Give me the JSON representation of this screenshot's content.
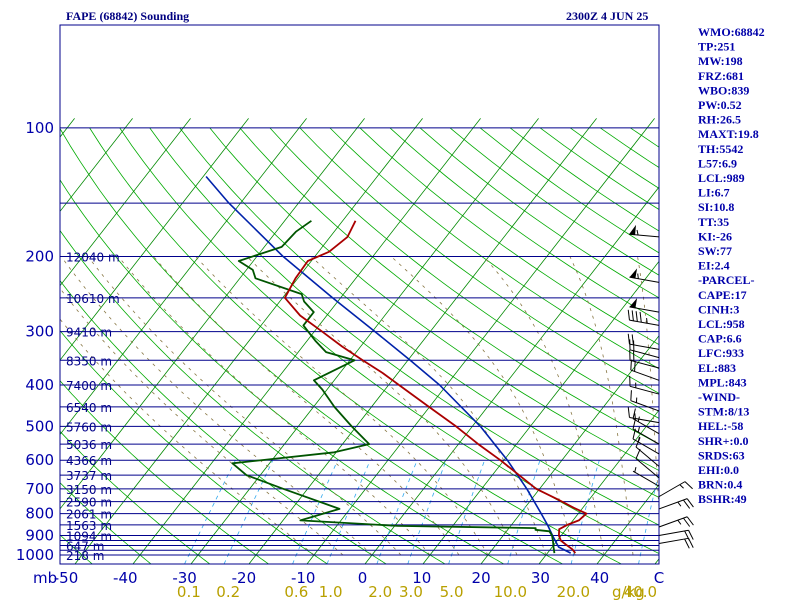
{
  "title_left": "FAPE (68842) Sounding",
  "title_right": "2300Z  4 JUN 25",
  "colors": {
    "isobar": "#00008b",
    "temperature": "#aa0000",
    "dewpoint": "#005500",
    "parcel": "#0022aa",
    "dry_adiabat": "#00aa00",
    "isotherm": "#008800",
    "mixing_ratio": "#33aaee",
    "moist_adiabat": "#887744",
    "wind": "#000000"
  },
  "chart_data": {
    "type": "skew-t log-p",
    "title": "FAPE (68842) Sounding",
    "valid_time": "2300Z  4 JUN 25",
    "pressure_unit": "mb",
    "mixing_ratio_unit": "g/kg",
    "pressure_labels": [
      "100",
      "200",
      "300",
      "400",
      "500",
      "600",
      "700",
      "800",
      "900",
      "1000"
    ],
    "temperature_tick_labels": [
      "-50",
      "-40",
      "-30",
      "-20",
      "-10",
      "0",
      "10",
      "20",
      "30",
      "40",
      "C"
    ],
    "mixing_ratio_labels": [
      "0.1",
      "0.2",
      "0.6",
      "1.0",
      "2.0",
      "3.0",
      "5.0",
      "10.0",
      "20.0",
      "40.0"
    ],
    "height_labels": [
      {
        "p": 200,
        "label": "12040 m"
      },
      {
        "p": 250,
        "label": "10610 m"
      },
      {
        "p": 300,
        "label": "9410 m"
      },
      {
        "p": 350,
        "label": "8350 m"
      },
      {
        "p": 400,
        "label": "7400 m"
      },
      {
        "p": 450,
        "label": "6540 m"
      },
      {
        "p": 500,
        "label": "5760 m"
      },
      {
        "p": 550,
        "label": "5036 m"
      },
      {
        "p": 600,
        "label": "4366 m"
      },
      {
        "p": 650,
        "label": "3737 m"
      },
      {
        "p": 700,
        "label": "3150 m"
      },
      {
        "p": 750,
        "label": "2590 m"
      },
      {
        "p": 800,
        "label": "2061 m"
      },
      {
        "p": 850,
        "label": "1563 m"
      },
      {
        "p": 900,
        "label": "1094 m"
      },
      {
        "p": 950,
        "label": "647 m"
      },
      {
        "p": 1000,
        "label": "218 m"
      }
    ],
    "temperature_profile": [
      {
        "p": 990,
        "t": 24.8
      },
      {
        "p": 970,
        "t": 23.8
      },
      {
        "p": 945,
        "t": 22.0
      },
      {
        "p": 925,
        "t": 20.6
      },
      {
        "p": 900,
        "t": 19.6
      },
      {
        "p": 870,
        "t": 18.8
      },
      {
        "p": 850,
        "t": 19.6
      },
      {
        "p": 830,
        "t": 21.0
      },
      {
        "p": 800,
        "t": 21.4
      },
      {
        "p": 775,
        "t": 18.4
      },
      {
        "p": 740,
        "t": 14.4
      },
      {
        "p": 700,
        "t": 9.4
      },
      {
        "p": 660,
        "t": 5.6
      },
      {
        "p": 600,
        "t": -0.6
      },
      {
        "p": 550,
        "t": -6.6
      },
      {
        "p": 500,
        "t": -12.8
      },
      {
        "p": 450,
        "t": -20.1
      },
      {
        "p": 400,
        "t": -28.2
      },
      {
        "p": 375,
        "t": -32.6
      },
      {
        "p": 350,
        "t": -37.8
      },
      {
        "p": 325,
        "t": -43.2
      },
      {
        "p": 300,
        "t": -48.6
      },
      {
        "p": 275,
        "t": -54.6
      },
      {
        "p": 250,
        "t": -59.6
      },
      {
        "p": 225,
        "t": -60.4
      },
      {
        "p": 205,
        "t": -60.6
      },
      {
        "p": 195,
        "t": -58.2
      },
      {
        "p": 180,
        "t": -57.0
      },
      {
        "p": 165,
        "t": -57.8
      }
    ],
    "dewpoint_profile": [
      {
        "p": 990,
        "td": 21.2
      },
      {
        "p": 960,
        "td": 20.3
      },
      {
        "p": 930,
        "td": 19.4
      },
      {
        "p": 900,
        "td": 18.4
      },
      {
        "p": 880,
        "td": 17.4
      },
      {
        "p": 873,
        "td": 14.8
      },
      {
        "p": 865,
        "td": 14.6
      },
      {
        "p": 855,
        "td": -9.5
      },
      {
        "p": 830,
        "td": -27.0
      },
      {
        "p": 780,
        "td": -21.8
      },
      {
        "p": 700,
        "td": -34.2
      },
      {
        "p": 650,
        "td": -42.4
      },
      {
        "p": 610,
        "td": -46.4
      },
      {
        "p": 575,
        "td": -30.3
      },
      {
        "p": 550,
        "td": -25.4
      },
      {
        "p": 500,
        "td": -30.8
      },
      {
        "p": 450,
        "td": -36.4
      },
      {
        "p": 410,
        "td": -40.8
      },
      {
        "p": 390,
        "td": -43.5
      },
      {
        "p": 350,
        "td": -39.2
      },
      {
        "p": 335,
        "td": -45.2
      },
      {
        "p": 315,
        "td": -48.6
      },
      {
        "p": 290,
        "td": -52.7
      },
      {
        "p": 270,
        "td": -52.7
      },
      {
        "p": 255,
        "td": -55.8
      },
      {
        "p": 245,
        "td": -57.2
      },
      {
        "p": 225,
        "td": -67.3
      },
      {
        "p": 215,
        "td": -68.9
      },
      {
        "p": 205,
        "td": -72.5
      },
      {
        "p": 190,
        "td": -67.0
      },
      {
        "p": 175,
        "td": -66.6
      },
      {
        "p": 165,
        "td": -65.4
      }
    ],
    "parcel_profile": [
      {
        "p": 990,
        "t": 24.0
      },
      {
        "p": 958,
        "t": 21.1
      },
      {
        "p": 900,
        "t": 18.5
      },
      {
        "p": 850,
        "t": 16.2
      },
      {
        "p": 800,
        "t": 13.6
      },
      {
        "p": 700,
        "t": 7.8
      },
      {
        "p": 600,
        "t": 0.6
      },
      {
        "p": 500,
        "t": -8.6
      },
      {
        "p": 400,
        "t": -21.2
      },
      {
        "p": 350,
        "t": -29.6
      },
      {
        "p": 300,
        "t": -39.5
      },
      {
        "p": 250,
        "t": -51.4
      },
      {
        "p": 200,
        "t": -65.5
      },
      {
        "p": 150,
        "t": -82.0
      },
      {
        "p": 130,
        "t": -89.5
      }
    ],
    "wind_barbs": [
      {
        "p": 180,
        "dir": 275,
        "kt": 55
      },
      {
        "p": 230,
        "dir": 280,
        "kt": 55
      },
      {
        "p": 270,
        "dir": 280,
        "kt": 50
      },
      {
        "p": 290,
        "dir": 280,
        "kt": 45
      },
      {
        "p": 330,
        "dir": 280,
        "kt": 20
      },
      {
        "p": 345,
        "dir": 285,
        "kt": 20
      },
      {
        "p": 365,
        "dir": 285,
        "kt": 20
      },
      {
        "p": 390,
        "dir": 290,
        "kt": 20
      },
      {
        "p": 420,
        "dir": 285,
        "kt": 15
      },
      {
        "p": 460,
        "dir": 290,
        "kt": 15
      },
      {
        "p": 490,
        "dir": 280,
        "kt": 15
      },
      {
        "p": 520,
        "dir": 300,
        "kt": 15
      },
      {
        "p": 550,
        "dir": 300,
        "kt": 15
      },
      {
        "p": 580,
        "dir": 300,
        "kt": 15
      },
      {
        "p": 620,
        "dir": 310,
        "kt": 10
      },
      {
        "p": 660,
        "dir": 310,
        "kt": 10
      },
      {
        "p": 690,
        "dir": 300,
        "kt": 5
      },
      {
        "p": 730,
        "dir": 60,
        "kt": 15
      },
      {
        "p": 780,
        "dir": 70,
        "kt": 25
      },
      {
        "p": 860,
        "dir": 70,
        "kt": 25
      },
      {
        "p": 900,
        "dir": 80,
        "kt": 20
      },
      {
        "p": 940,
        "dir": 80,
        "kt": 20
      }
    ]
  },
  "indices": [
    "WMO:68842",
    "TP:251",
    "MW:198",
    "FRZ:681",
    "WBO:839",
    "PW:0.52",
    "RH:26.5",
    "MAXT:19.8",
    "TH:5542",
    "L57:6.9",
    "LCL:989",
    "LI:6.7",
    "SI:10.8",
    "TT:35",
    "KI:-26",
    "SW:77",
    "EI:2.4",
    "-PARCEL-",
    "CAPE:17",
    "CINH:3",
    "LCL:958",
    "CAP:6.6",
    "LFC:933",
    "EL:883",
    "MPL:843",
    "-WIND-",
    "STM:8/13",
    "HEL:-58",
    "SHR+:0.0",
    "SRDS:63",
    "EHI:0.0",
    "BRN:0.4",
    "BSHR:49"
  ]
}
